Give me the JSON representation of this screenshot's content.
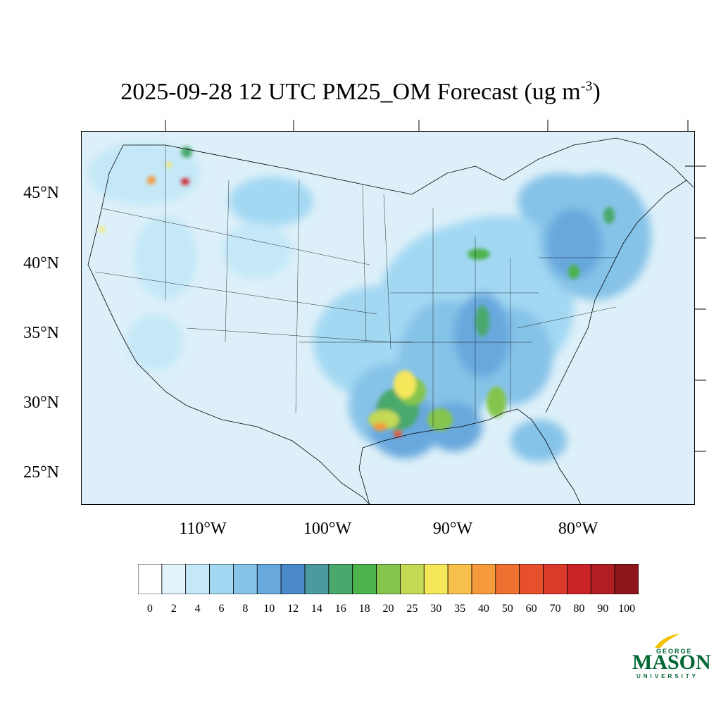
{
  "title": {
    "main": "2025-09-28 12 UTC PM25_OM Forecast (ug m",
    "sup": "-3",
    "close": ")"
  },
  "lat_labels": [
    "45°N",
    "40°N",
    "35°N",
    "30°N",
    "25°N"
  ],
  "lon_labels": [
    "110°W",
    "100°W",
    "90°W",
    "80°W"
  ],
  "colorbar": {
    "labels": [
      "0",
      "2",
      "4",
      "6",
      "8",
      "10",
      "12",
      "14",
      "16",
      "18",
      "20",
      "25",
      "30",
      "35",
      "40",
      "50",
      "60",
      "70",
      "80",
      "90",
      "100"
    ],
    "colors": [
      "#ffffff",
      "#e1f3fb",
      "#c4e8f8",
      "#a3d8f3",
      "#86c3e8",
      "#67a8dd",
      "#4a8ac8",
      "#4a9a9e",
      "#4aa86c",
      "#4cb24c",
      "#85c54d",
      "#c4d954",
      "#f6e65a",
      "#f7c04b",
      "#f59a3d",
      "#ef7132",
      "#e6502d",
      "#da3a2a",
      "#cc2329",
      "#b01d23",
      "#8c161a"
    ]
  },
  "logo": {
    "line1": "GEORGE",
    "line2": "MASON",
    "line3": "UNIVERSITY",
    "color": "#006633",
    "accent": "#f2c100"
  }
}
